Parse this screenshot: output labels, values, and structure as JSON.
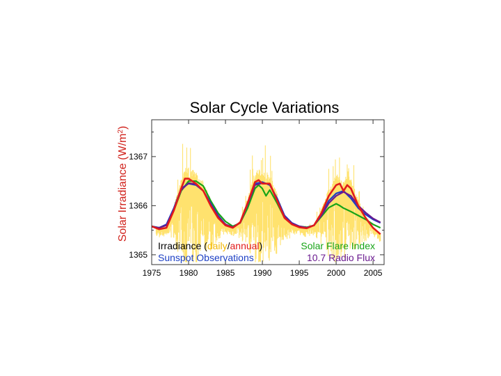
{
  "chart_data": {
    "type": "line",
    "title": "Solar Cycle Variations",
    "ylabel": "Solar Irradiance (W/m",
    "ylabel_sup": "2",
    "ylabel_close": ")",
    "xlim": [
      1975,
      2006.5
    ],
    "ylim": [
      1364.8,
      1367.75
    ],
    "x_ticks": [
      1975,
      1980,
      1985,
      1990,
      1995,
      2000,
      2005
    ],
    "x_tick_labels": [
      "1975",
      "1980",
      "1985",
      "1990",
      "1995",
      "2000",
      "2005"
    ],
    "y_ticks": [
      1365,
      1366,
      1367
    ],
    "y_tick_labels": [
      "1365",
      "1366",
      "1367"
    ],
    "grid": false,
    "legend": {
      "irradiance_prefix": "Irradiance (",
      "daily_word": "daily",
      "slash": "/",
      "annual_word": "annual",
      "irradiance_suffix": ")",
      "sunspot": "Sunspot Observations",
      "flare": "Solar Flare Index",
      "radio": "10.7 Radio Flux"
    },
    "colors": {
      "daily": "#ffe066",
      "annual": "#e11b1b",
      "sunspot": "#1c3fc4",
      "flare": "#18a418",
      "radio": "#6a1a8f",
      "ylabel": "#d0201a"
    },
    "series": [
      {
        "name": "Solar Flare Index",
        "color": "#18a418",
        "x": [
          1975.0,
          1976.0,
          1977.0,
          1978.0,
          1979.0,
          1980.0,
          1981.0,
          1982.0,
          1983.0,
          1984.0,
          1985.0,
          1986.0,
          1987.0,
          1988.0,
          1989.0,
          1989.5,
          1990.0,
          1990.5,
          1991.0,
          1992.0,
          1993.0,
          1994.0,
          1995.0,
          1996.0,
          1997.0,
          1998.0,
          1999.0,
          2000.0,
          2000.5,
          2001.0,
          2002.0,
          2003.0,
          2004.0,
          2005.0,
          2006.0
        ],
        "values": [
          1365.58,
          1365.55,
          1365.6,
          1365.9,
          1366.3,
          1366.5,
          1366.5,
          1366.4,
          1366.1,
          1365.85,
          1365.68,
          1365.58,
          1365.65,
          1365.95,
          1366.35,
          1366.42,
          1366.35,
          1366.2,
          1366.32,
          1366.05,
          1365.75,
          1365.62,
          1365.58,
          1365.56,
          1365.6,
          1365.78,
          1365.96,
          1366.04,
          1366.0,
          1365.95,
          1365.88,
          1365.8,
          1365.72,
          1365.62,
          1365.55
        ]
      },
      {
        "name": "Sunspot Observations",
        "color": "#1c3fc4",
        "x": [
          1975.0,
          1976.0,
          1977.0,
          1978.0,
          1979.0,
          1980.0,
          1981.0,
          1982.0,
          1983.0,
          1984.0,
          1985.0,
          1986.0,
          1987.0,
          1988.0,
          1989.0,
          1990.0,
          1991.0,
          1992.0,
          1993.0,
          1994.0,
          1995.0,
          1996.0,
          1997.0,
          1998.0,
          1999.0,
          2000.0,
          2001.0,
          2002.0,
          2003.0,
          2004.0,
          2005.0,
          2006.0
        ],
        "values": [
          1365.58,
          1365.55,
          1365.62,
          1365.95,
          1366.35,
          1366.45,
          1366.42,
          1366.3,
          1366.05,
          1365.8,
          1365.62,
          1365.56,
          1365.66,
          1366.05,
          1366.45,
          1366.48,
          1366.42,
          1366.15,
          1365.8,
          1365.65,
          1365.58,
          1365.55,
          1365.6,
          1365.82,
          1366.1,
          1366.25,
          1366.3,
          1366.15,
          1365.95,
          1365.82,
          1365.72,
          1365.65
        ]
      },
      {
        "name": "10.7 Radio Flux",
        "color": "#6a1a8f",
        "x": [
          1975.0,
          1976.0,
          1977.0,
          1978.0,
          1979.0,
          1980.0,
          1981.0,
          1982.0,
          1983.0,
          1984.0,
          1985.0,
          1986.0,
          1987.0,
          1988.0,
          1989.0,
          1990.0,
          1991.0,
          1992.0,
          1993.0,
          1994.0,
          1995.0,
          1996.0,
          1997.0,
          1998.0,
          1999.0,
          2000.0,
          2001.0,
          2002.0,
          2003.0,
          2004.0,
          2005.0,
          2006.0
        ],
        "values": [
          1365.57,
          1365.55,
          1365.6,
          1365.92,
          1366.32,
          1366.46,
          1366.44,
          1366.3,
          1366.02,
          1365.78,
          1365.62,
          1365.56,
          1365.65,
          1366.02,
          1366.42,
          1366.46,
          1366.44,
          1366.12,
          1365.78,
          1365.64,
          1365.58,
          1365.55,
          1365.6,
          1365.8,
          1366.05,
          1366.2,
          1366.28,
          1366.2,
          1366.0,
          1365.86,
          1365.74,
          1365.66
        ]
      },
      {
        "name": "annual",
        "color": "#e11b1b",
        "x": [
          1975.0,
          1976.0,
          1977.0,
          1978.0,
          1979.0,
          1979.5,
          1980.0,
          1981.0,
          1982.0,
          1983.0,
          1984.0,
          1985.0,
          1986.0,
          1987.0,
          1988.0,
          1989.0,
          1989.5,
          1990.0,
          1991.0,
          1992.0,
          1993.0,
          1994.0,
          1995.0,
          1996.0,
          1997.0,
          1998.0,
          1999.0,
          2000.0,
          2000.5,
          2001.0,
          2001.5,
          2002.0,
          2003.0,
          2004.0,
          2005.0,
          2006.0
        ],
        "values": [
          1365.58,
          1365.52,
          1365.55,
          1365.9,
          1366.35,
          1366.55,
          1366.55,
          1366.45,
          1366.3,
          1366.0,
          1365.75,
          1365.6,
          1365.55,
          1365.66,
          1366.05,
          1366.48,
          1366.52,
          1366.45,
          1366.45,
          1366.1,
          1365.75,
          1365.62,
          1365.56,
          1365.54,
          1365.6,
          1365.85,
          1366.2,
          1366.42,
          1366.45,
          1366.3,
          1366.42,
          1366.35,
          1366.0,
          1365.75,
          1365.55,
          1365.42
        ]
      }
    ]
  }
}
